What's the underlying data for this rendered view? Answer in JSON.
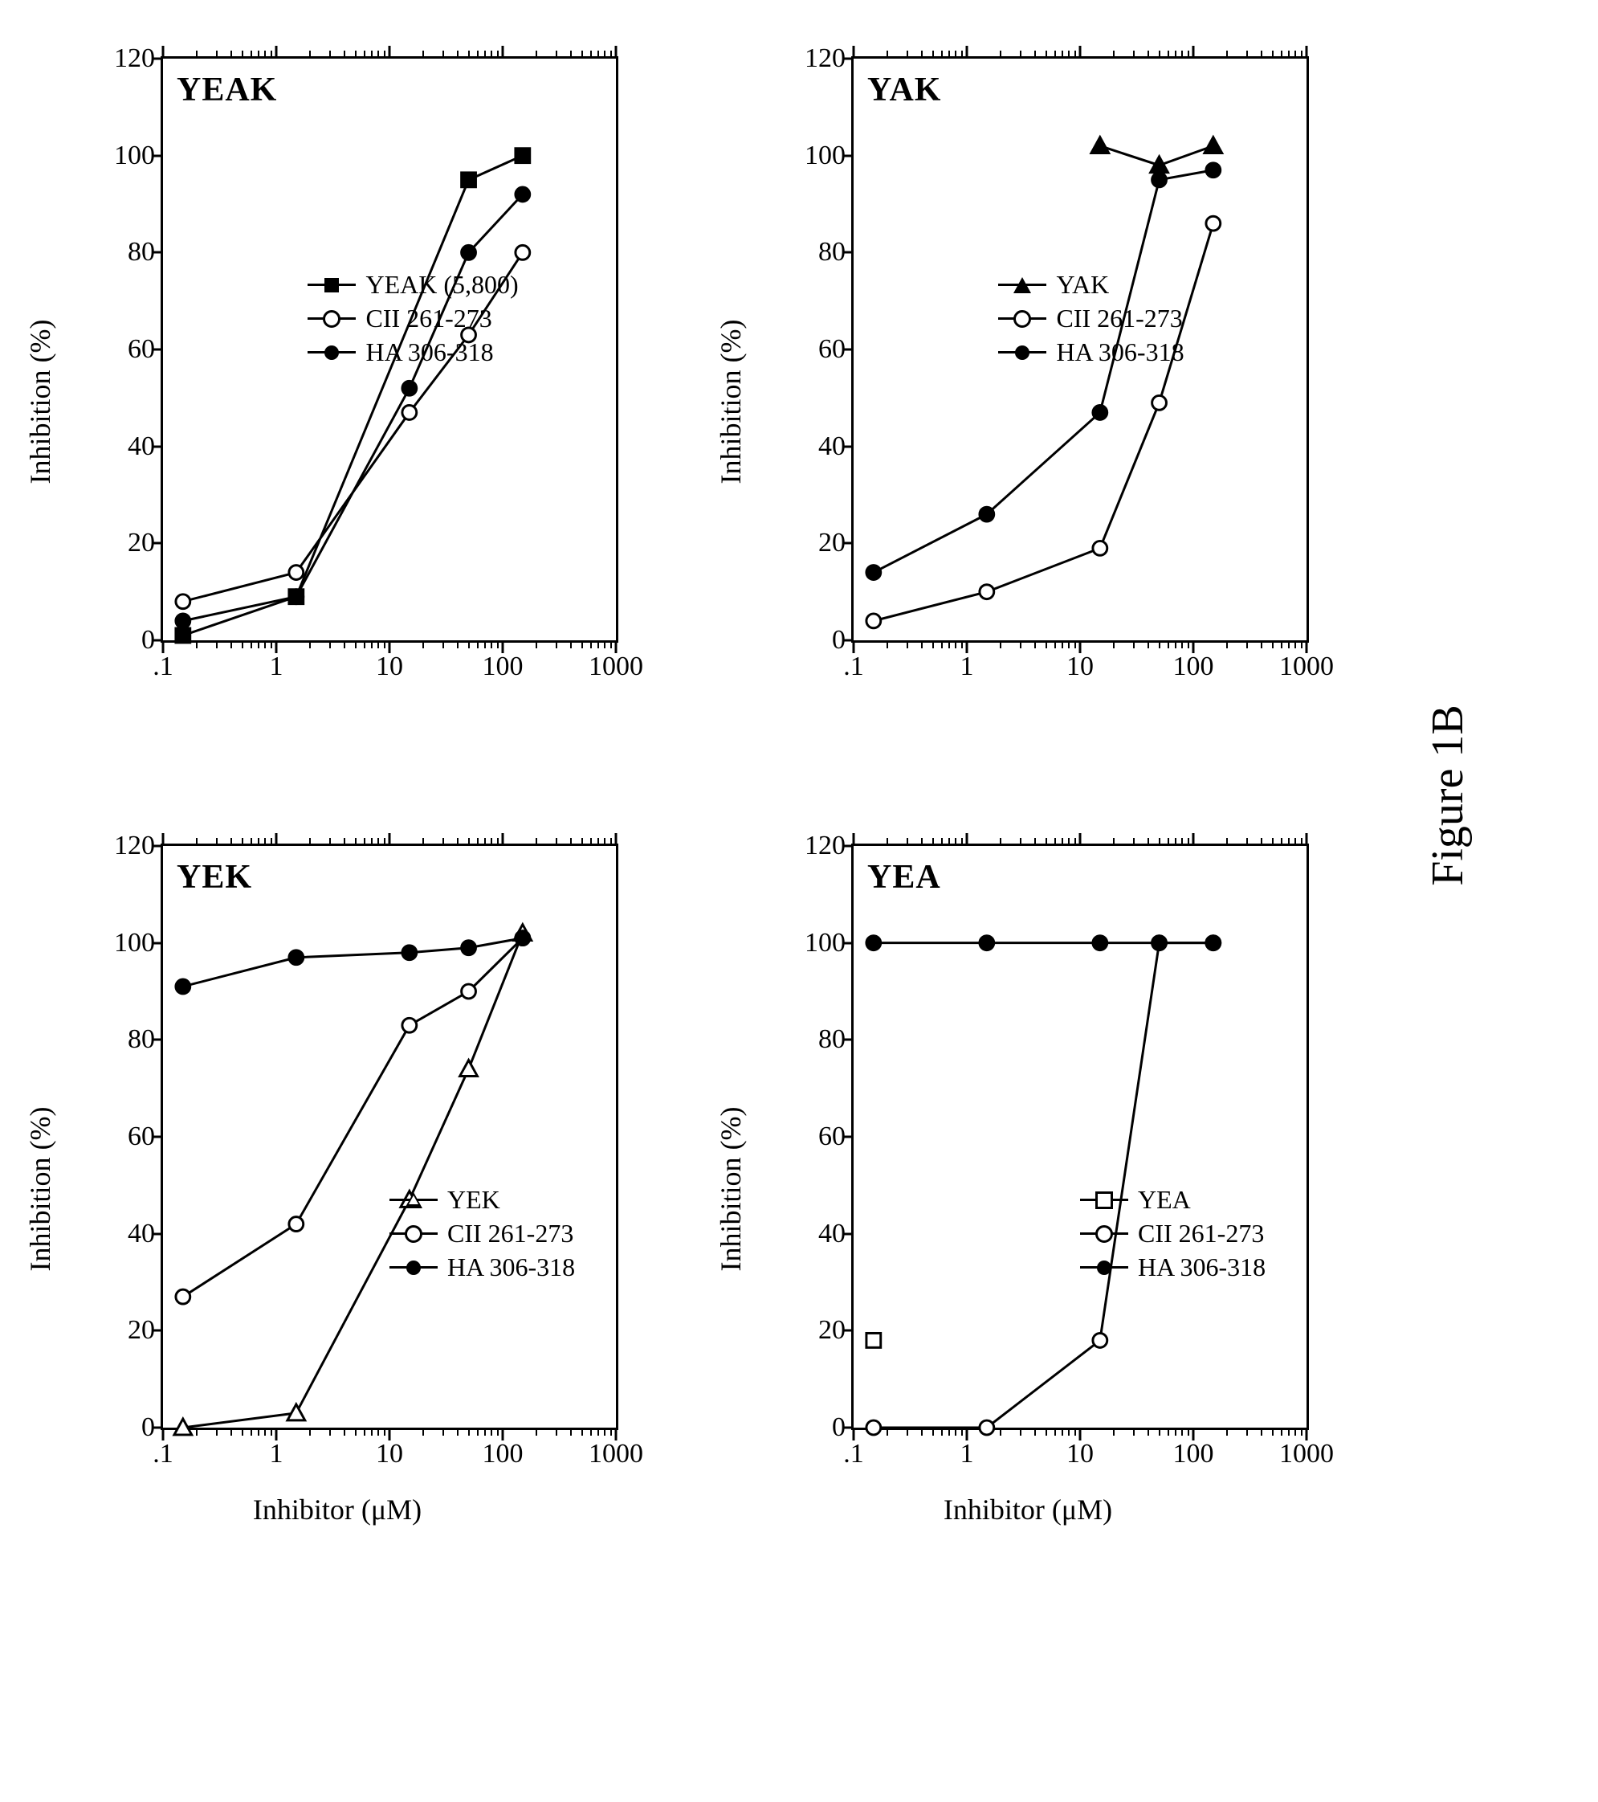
{
  "figure_caption": "Figure 1B",
  "axes_common": {
    "ylabel": "Inhibition (%)",
    "xlabel": "Inhibitor (μM)",
    "ylim": [
      0,
      120
    ],
    "ytick_step": 20,
    "yticks": [
      0,
      20,
      40,
      60,
      80,
      100,
      120
    ],
    "xscale": "log",
    "xlim": [
      0.1,
      1000
    ],
    "xticks_major": [
      0.1,
      1,
      10,
      100,
      1000
    ],
    "xtick_labels": [
      ".1",
      "1",
      "10",
      "100",
      "1000"
    ],
    "line_color": "#000000",
    "line_width": 3,
    "background_color": "#ffffff",
    "font_family": "Times New Roman",
    "title_fontsize": 42,
    "label_fontsize": 36,
    "tick_fontsize": 34,
    "legend_fontsize": 32,
    "marker_size": 18
  },
  "panels": [
    {
      "id": "yeak",
      "title": "YEAK",
      "show_xlabel": false,
      "legend": {
        "left_pct": 32,
        "top_pct": 36
      },
      "series": [
        {
          "label": "YEAK (5,800)",
          "marker": {
            "shape": "square",
            "fill": "filled",
            "color": "#000000"
          },
          "x": [
            0.15,
            1.5,
            50,
            150
          ],
          "y": [
            1,
            9,
            95,
            100
          ]
        },
        {
          "label": "CII 261-273",
          "marker": {
            "shape": "circle",
            "fill": "open",
            "color": "#000000"
          },
          "x": [
            0.15,
            1.5,
            15,
            50,
            150
          ],
          "y": [
            8,
            14,
            47,
            63,
            80
          ]
        },
        {
          "label": "HA 306-318",
          "marker": {
            "shape": "circle",
            "fill": "filled",
            "color": "#000000"
          },
          "x": [
            0.15,
            1.5,
            15,
            50,
            150
          ],
          "y": [
            4,
            9,
            52,
            80,
            92
          ]
        }
      ]
    },
    {
      "id": "yak",
      "title": "YAK",
      "show_xlabel": false,
      "legend": {
        "left_pct": 32,
        "top_pct": 36
      },
      "series": [
        {
          "label": "YAK",
          "marker": {
            "shape": "triangle",
            "fill": "filled",
            "color": "#000000"
          },
          "x": [
            15,
            50,
            150
          ],
          "y": [
            102,
            98,
            102
          ]
        },
        {
          "label": "CII 261-273",
          "marker": {
            "shape": "circle",
            "fill": "open",
            "color": "#000000"
          },
          "x": [
            0.15,
            1.5,
            15,
            50,
            150
          ],
          "y": [
            4,
            10,
            19,
            49,
            86
          ]
        },
        {
          "label": "HA 306-318",
          "marker": {
            "shape": "circle",
            "fill": "filled",
            "color": "#000000"
          },
          "x": [
            0.15,
            1.5,
            15,
            50,
            150
          ],
          "y": [
            14,
            26,
            47,
            95,
            97
          ]
        }
      ]
    },
    {
      "id": "yek",
      "title": "YEK",
      "show_xlabel": true,
      "legend": {
        "left_pct": 50,
        "top_pct": 58
      },
      "series": [
        {
          "label": "YEK",
          "marker": {
            "shape": "triangle",
            "fill": "open",
            "color": "#000000"
          },
          "x": [
            0.15,
            1.5,
            15,
            50,
            150
          ],
          "y": [
            0,
            3,
            47,
            74,
            102
          ]
        },
        {
          "label": "CII 261-273",
          "marker": {
            "shape": "circle",
            "fill": "open",
            "color": "#000000"
          },
          "x": [
            0.15,
            1.5,
            15,
            50,
            150
          ],
          "y": [
            27,
            42,
            83,
            90,
            101
          ]
        },
        {
          "label": "HA 306-318",
          "marker": {
            "shape": "circle",
            "fill": "filled",
            "color": "#000000"
          },
          "x": [
            0.15,
            1.5,
            15,
            50,
            150
          ],
          "y": [
            91,
            97,
            98,
            99,
            101
          ]
        }
      ]
    },
    {
      "id": "yea",
      "title": "YEA",
      "show_xlabel": true,
      "legend": {
        "left_pct": 50,
        "top_pct": 58
      },
      "series": [
        {
          "label": "YEA",
          "marker": {
            "shape": "square",
            "fill": "open",
            "color": "#000000"
          },
          "x": [
            0.15
          ],
          "y": [
            18
          ]
        },
        {
          "label": "CII 261-273",
          "marker": {
            "shape": "circle",
            "fill": "open",
            "color": "#000000"
          },
          "x": [
            0.15,
            1.5,
            15,
            50,
            150
          ],
          "y": [
            0,
            0,
            18,
            100,
            100
          ]
        },
        {
          "label": "HA 306-318",
          "marker": {
            "shape": "circle",
            "fill": "filled",
            "color": "#000000"
          },
          "x": [
            0.15,
            1.5,
            15,
            50,
            150
          ],
          "y": [
            100,
            100,
            100,
            100,
            100
          ]
        }
      ]
    }
  ]
}
